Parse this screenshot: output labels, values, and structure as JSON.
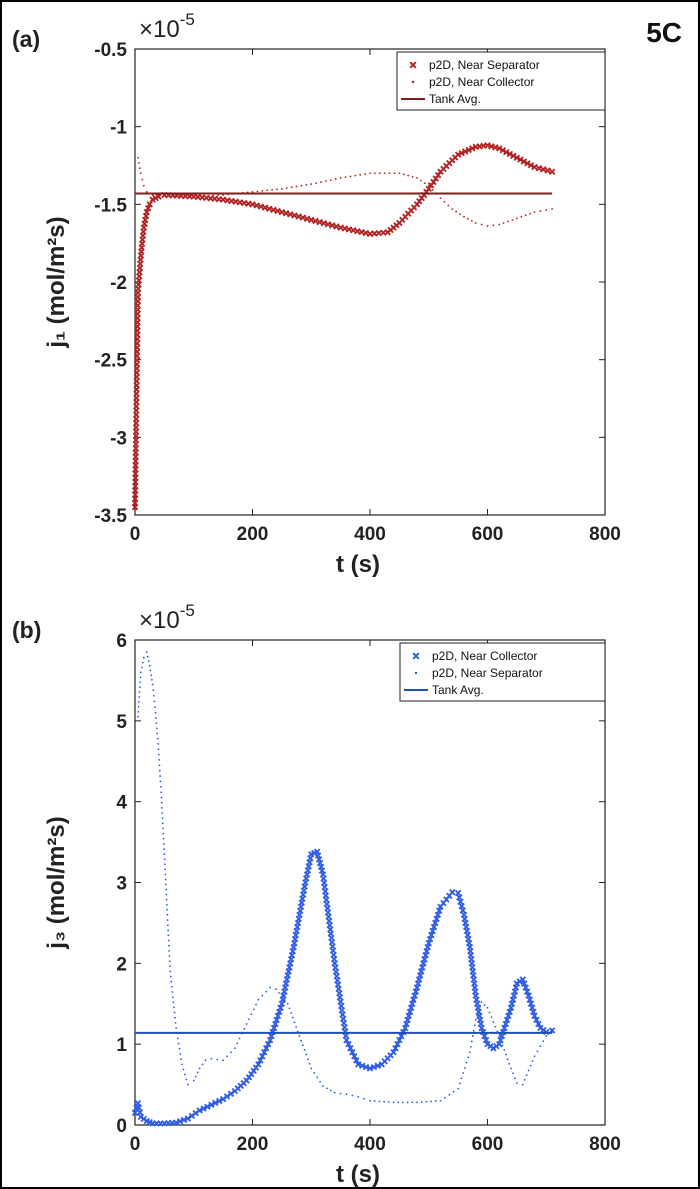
{
  "figure": {
    "tag": "5C"
  },
  "chart_data": [
    {
      "type": "scatter",
      "panel_label": "(a)",
      "multiplier_base": "×10",
      "multiplier_exp": "-5",
      "xlabel": "t (s)",
      "ylabel": "j₁ (mol/m²s)",
      "xlim": [
        0,
        800
      ],
      "ylim": [
        -3.5,
        -0.5
      ],
      "xticks": [
        0,
        200,
        400,
        600,
        800
      ],
      "yticks": [
        -3.5,
        -3,
        -2.5,
        -2,
        -1.5,
        -1,
        -0.5
      ],
      "ytick_labels": [
        "-3.5",
        "-3",
        "-2.5",
        "-2",
        "-1.5",
        "-1",
        "-0.5"
      ],
      "grid": false,
      "legend_position": "top-right",
      "series": [
        {
          "name": "p2D, Near Separator",
          "marker": "x",
          "color": "#b22222",
          "x": [
            0,
            5,
            10,
            15,
            20,
            25,
            30,
            40,
            50,
            100,
            150,
            200,
            250,
            300,
            350,
            400,
            430,
            450,
            480,
            500,
            520,
            550,
            580,
            600,
            620,
            650,
            680,
            710
          ],
          "y": [
            -3.45,
            -2.07,
            -1.83,
            -1.65,
            -1.55,
            -1.5,
            -1.47,
            -1.45,
            -1.44,
            -1.45,
            -1.47,
            -1.5,
            -1.55,
            -1.6,
            -1.65,
            -1.69,
            -1.68,
            -1.62,
            -1.5,
            -1.4,
            -1.29,
            -1.18,
            -1.13,
            -1.12,
            -1.14,
            -1.2,
            -1.26,
            -1.29
          ]
        },
        {
          "name": "p2D, Near Collector",
          "marker": "dot",
          "color": "#b22222",
          "x": [
            5,
            10,
            15,
            20,
            30,
            40,
            60,
            100,
            150,
            200,
            250,
            300,
            350,
            400,
            450,
            480,
            500,
            520,
            540,
            560,
            580,
            600,
            620,
            650,
            680,
            710
          ],
          "y": [
            -1.2,
            -1.3,
            -1.38,
            -1.42,
            -1.44,
            -1.44,
            -1.45,
            -1.45,
            -1.44,
            -1.42,
            -1.4,
            -1.37,
            -1.33,
            -1.3,
            -1.3,
            -1.33,
            -1.38,
            -1.46,
            -1.53,
            -1.58,
            -1.62,
            -1.64,
            -1.63,
            -1.59,
            -1.55,
            -1.53
          ]
        },
        {
          "name": "Tank Avg.",
          "marker": "line",
          "color": "#7a1f1f",
          "x": [
            0,
            710
          ],
          "y": [
            -1.43,
            -1.43
          ]
        }
      ]
    },
    {
      "type": "scatter",
      "panel_label": "(b)",
      "multiplier_base": "×10",
      "multiplier_exp": "-5",
      "xlabel": "t (s)",
      "ylabel": "j₃ (mol/m²s)",
      "xlim": [
        0,
        800
      ],
      "ylim": [
        0,
        6
      ],
      "xticks": [
        0,
        200,
        400,
        600,
        800
      ],
      "yticks": [
        0,
        1,
        2,
        3,
        4,
        5,
        6
      ],
      "ytick_labels": [
        "0",
        "1",
        "2",
        "3",
        "4",
        "5",
        "6"
      ],
      "grid": false,
      "legend_position": "top-right",
      "series": [
        {
          "name": "p2D, Near Collector",
          "marker": "x",
          "color": "#2f5ce6",
          "x": [
            0,
            5,
            10,
            20,
            30,
            50,
            70,
            90,
            110,
            130,
            150,
            170,
            190,
            210,
            230,
            250,
            270,
            290,
            300,
            310,
            320,
            340,
            360,
            380,
            400,
            420,
            440,
            460,
            480,
            500,
            520,
            540,
            550,
            560,
            570,
            580,
            590,
            600,
            610,
            620,
            640,
            650,
            660,
            670,
            680,
            690,
            700,
            710
          ],
          "y": [
            0.15,
            0.27,
            0.1,
            0.05,
            0.02,
            0.02,
            0.03,
            0.08,
            0.18,
            0.25,
            0.32,
            0.42,
            0.55,
            0.75,
            1.05,
            1.5,
            2.2,
            3.0,
            3.35,
            3.38,
            3.1,
            2.0,
            1.05,
            0.75,
            0.7,
            0.75,
            0.9,
            1.2,
            1.7,
            2.25,
            2.7,
            2.88,
            2.87,
            2.6,
            2.2,
            1.6,
            1.2,
            1.0,
            0.95,
            1.0,
            1.45,
            1.75,
            1.8,
            1.6,
            1.35,
            1.2,
            1.15,
            1.17
          ]
        },
        {
          "name": "p2D, Near Separator",
          "marker": "dot",
          "color": "#2f5ce6",
          "x": [
            5,
            10,
            15,
            20,
            25,
            30,
            35,
            40,
            45,
            50,
            55,
            60,
            70,
            80,
            90,
            100,
            110,
            120,
            130,
            150,
            170,
            190,
            210,
            230,
            240,
            260,
            280,
            300,
            320,
            340,
            360,
            380,
            400,
            440,
            480,
            520,
            550,
            570,
            580,
            590,
            600,
            620,
            640,
            650,
            660,
            680,
            700,
            710
          ],
          "y": [
            5.05,
            5.6,
            5.78,
            5.85,
            5.68,
            5.45,
            5.1,
            4.65,
            4.05,
            3.35,
            2.6,
            1.9,
            1.2,
            0.75,
            0.5,
            0.55,
            0.7,
            0.8,
            0.82,
            0.8,
            0.95,
            1.25,
            1.55,
            1.7,
            1.68,
            1.5,
            1.1,
            0.7,
            0.48,
            0.4,
            0.38,
            0.35,
            0.3,
            0.28,
            0.28,
            0.3,
            0.45,
            0.9,
            1.3,
            1.52,
            1.45,
            1.1,
            0.7,
            0.52,
            0.5,
            0.85,
            1.1,
            1.15
          ]
        },
        {
          "name": "Tank Avg.",
          "marker": "line",
          "color": "#1f4fb8",
          "x": [
            0,
            710
          ],
          "y": [
            1.14,
            1.14
          ]
        }
      ]
    }
  ]
}
